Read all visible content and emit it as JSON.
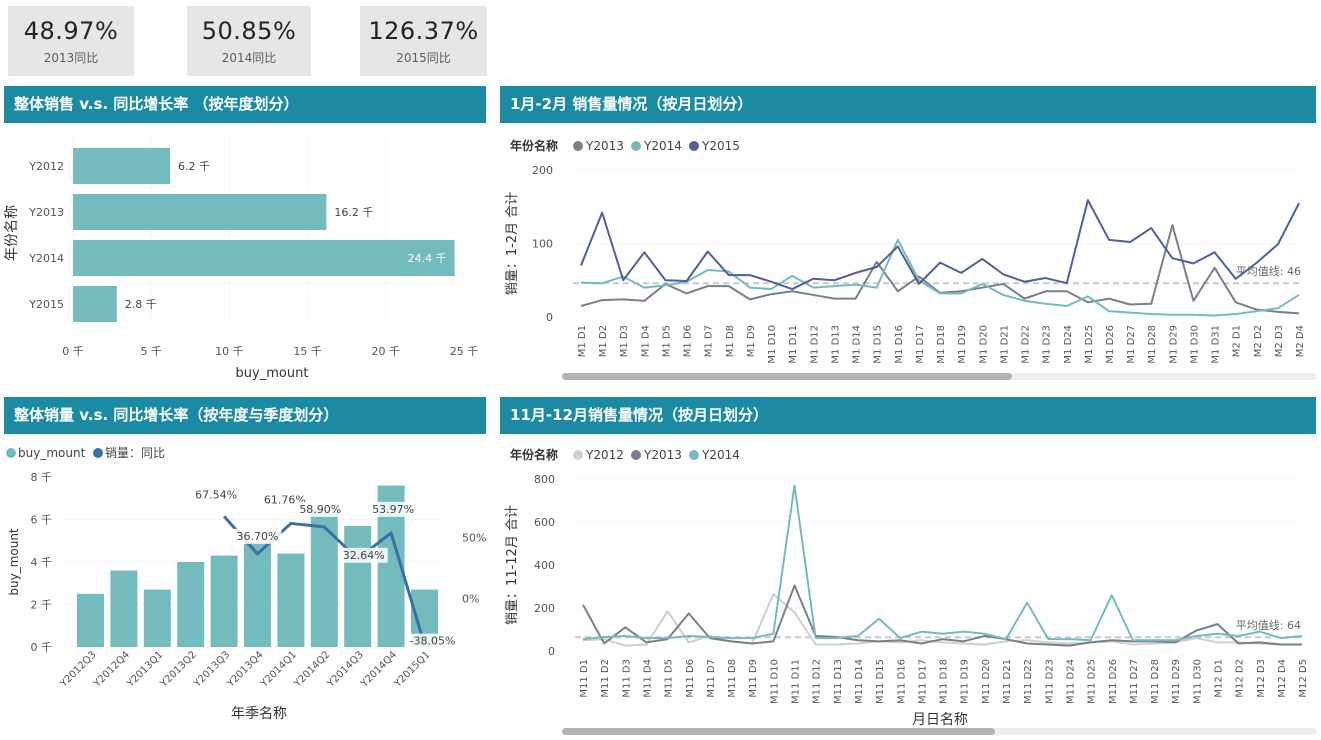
{
  "kpis": [
    {
      "value": "48.97%",
      "label": "2013同比"
    },
    {
      "value": "50.85%",
      "label": "2014同比"
    },
    {
      "value": "126.37%",
      "label": "2015同比"
    }
  ],
  "panels": {
    "p1_title": "整体销售 v.s. 同比增长率 （按年度划分）",
    "p2_title": "1月-2月 销售量情况（按月日划分）",
    "p3_title": "整体销量 v.s. 同比增长率（按年度与季度划分）",
    "p4_title": "11月-12月销售量情况（按月日划分）"
  },
  "chart_data": [
    {
      "id": "c1",
      "type": "bar",
      "orientation": "horizontal",
      "categories": [
        "Y2012",
        "Y2013",
        "Y2014",
        "Y2015"
      ],
      "values": [
        6.2,
        16.2,
        24.4,
        2.8
      ],
      "data_labels": [
        "6.2 千",
        "16.2 千",
        "24.4 千",
        "2.8 千"
      ],
      "xticks": [
        "0 千",
        "5 千",
        "10 千",
        "15 千",
        "20 千",
        "25 千"
      ],
      "xlim": [
        0,
        25
      ],
      "xlabel": "buy_mount",
      "ylabel": "年份名称",
      "bar_color": "#74bbbe"
    },
    {
      "id": "c2",
      "type": "line",
      "legend_title": "年份名称",
      "categories": [
        "M1 D1",
        "M1 D2",
        "M1 D3",
        "M1 D4",
        "M1 D5",
        "M1 D6",
        "M1 D7",
        "M1 D8",
        "M1 D9",
        "M1 D10",
        "M1 D11",
        "M1 D12",
        "M1 D13",
        "M1 D14",
        "M1 D15",
        "M1 D16",
        "M1 D17",
        "M1 D18",
        "M1 D19",
        "M1 D20",
        "M1 D21",
        "M1 D22",
        "M1 D23",
        "M1 D24",
        "M1 D25",
        "M1 D26",
        "M1 D27",
        "M1 D28",
        "M1 D29",
        "M1 D30",
        "M1 D31",
        "M2 D1",
        "M2 D2",
        "M2 D3",
        "M2 D4"
      ],
      "series": [
        {
          "name": "Y2013",
          "color": "#7a7f8c",
          "values": [
            15,
            23,
            24,
            22,
            45,
            32,
            42,
            42,
            24,
            31,
            35,
            30,
            25,
            25,
            75,
            35,
            55,
            33,
            35,
            40,
            45,
            25,
            35,
            35,
            20,
            25,
            17,
            18,
            125,
            22,
            67,
            20,
            10,
            7,
            5
          ]
        },
        {
          "name": "Y2014",
          "color": "#74bbbe",
          "values": [
            47,
            46,
            55,
            40,
            43,
            48,
            64,
            62,
            40,
            38,
            56,
            40,
            42,
            44,
            40,
            105,
            50,
            32,
            32,
            45,
            30,
            22,
            18,
            15,
            28,
            8,
            6,
            4,
            3,
            3,
            2,
            4,
            8,
            12,
            30
          ]
        },
        {
          "name": "Y2015",
          "color": "#4f5fa0",
          "values": [
            70,
            142,
            50,
            88,
            50,
            49,
            89,
            57,
            57,
            48,
            38,
            52,
            50,
            60,
            68,
            96,
            45,
            74,
            60,
            79,
            58,
            48,
            53,
            46,
            159,
            105,
            102,
            121,
            80,
            73,
            88,
            52,
            74,
            99,
            155
          ]
        }
      ],
      "yticks": [
        0,
        100,
        200
      ],
      "ylim": [
        0,
        200
      ],
      "ylabel": "销量：1-2月 合计",
      "average_line": 46,
      "average_label": "平均值线: 46"
    },
    {
      "id": "c3",
      "type": "bar",
      "categories": [
        "Y2012Q3",
        "Y2012Q4",
        "Y2013Q1",
        "Y2013Q2",
        "Y2013Q3",
        "Y2013Q4",
        "Y2014Q1",
        "Y2014Q2",
        "Y2014Q3",
        "Y2014Q4",
        "Y2015Q1"
      ],
      "series": [
        {
          "name": "buy_mount",
          "color": "#74bbbe",
          "values": [
            2.5,
            3.6,
            2.7,
            4.0,
            4.3,
            4.9,
            4.4,
            6.5,
            5.7,
            7.6,
            2.7
          ]
        },
        {
          "name": "销量：同比",
          "color": "#3c6fa8",
          "type": "line",
          "values": [
            null,
            null,
            null,
            null,
            67.54,
            36.7,
            61.76,
            58.9,
            32.64,
            53.97,
            -38.05
          ]
        }
      ],
      "yticks": [
        "0 千",
        "2 千",
        "4 千",
        "6 千",
        "8 千"
      ],
      "ylim": [
        0,
        8
      ],
      "y2ticks": [
        "50%",
        "0%"
      ],
      "y2lim": [
        -40,
        100
      ],
      "point_labels": [
        "67.54%",
        "36.70%",
        "61.76%",
        "58.90%",
        "32.64%",
        "53.97%",
        "-38.05%"
      ],
      "xlabel": "年季名称",
      "ylabel": "buy_mount"
    },
    {
      "id": "c4",
      "type": "line",
      "legend_title": "年份名称",
      "categories": [
        "M11 D1",
        "M11 D2",
        "M11 D3",
        "M11 D4",
        "M11 D5",
        "M11 D6",
        "M11 D7",
        "M11 D8",
        "M11 D9",
        "M11 D10",
        "M11 D11",
        "M11 D12",
        "M11 D13",
        "M11 D14",
        "M11 D15",
        "M11 D16",
        "M11 D17",
        "M11 D18",
        "M11 D19",
        "M11 D20",
        "M11 D21",
        "M11 D22",
        "M11 D23",
        "M11 D24",
        "M11 D25",
        "M11 D26",
        "M11 D27",
        "M11 D28",
        "M11 D29",
        "M11 D30",
        "M12 D1",
        "M12 D2",
        "M12 D3",
        "M12 D4",
        "M12 D5"
      ],
      "series": [
        {
          "name": "Y2012",
          "color": "#cfcfcf",
          "values": [
            50,
            55,
            25,
            30,
            185,
            40,
            70,
            45,
            35,
            265,
            180,
            30,
            30,
            35,
            45,
            40,
            50,
            40,
            35,
            30,
            45,
            50,
            40,
            35,
            40,
            45,
            30,
            35,
            40,
            60,
            40,
            40,
            35,
            30,
            30
          ]
        },
        {
          "name": "Y2013",
          "color": "#7a7f8c",
          "values": [
            215,
            35,
            110,
            40,
            55,
            175,
            60,
            45,
            35,
            45,
            305,
            70,
            65,
            50,
            45,
            50,
            35,
            55,
            45,
            70,
            55,
            35,
            30,
            25,
            40,
            50,
            45,
            45,
            40,
            95,
            125,
            35,
            40,
            30,
            30
          ]
        },
        {
          "name": "Y2014",
          "color": "#74bbbe",
          "values": [
            55,
            65,
            70,
            60,
            60,
            70,
            65,
            60,
            60,
            80,
            770,
            60,
            60,
            70,
            150,
            60,
            90,
            80,
            90,
            80,
            55,
            225,
            55,
            55,
            50,
            260,
            50,
            50,
            50,
            70,
            80,
            70,
            90,
            60,
            70
          ]
        }
      ],
      "yticks": [
        0,
        200,
        400,
        600,
        800
      ],
      "ylim": [
        0,
        800
      ],
      "ylabel": "销量：11-12月 合计",
      "xlabel": "月日名称",
      "average_line": 64,
      "average_label": "平均值线: 64"
    }
  ]
}
